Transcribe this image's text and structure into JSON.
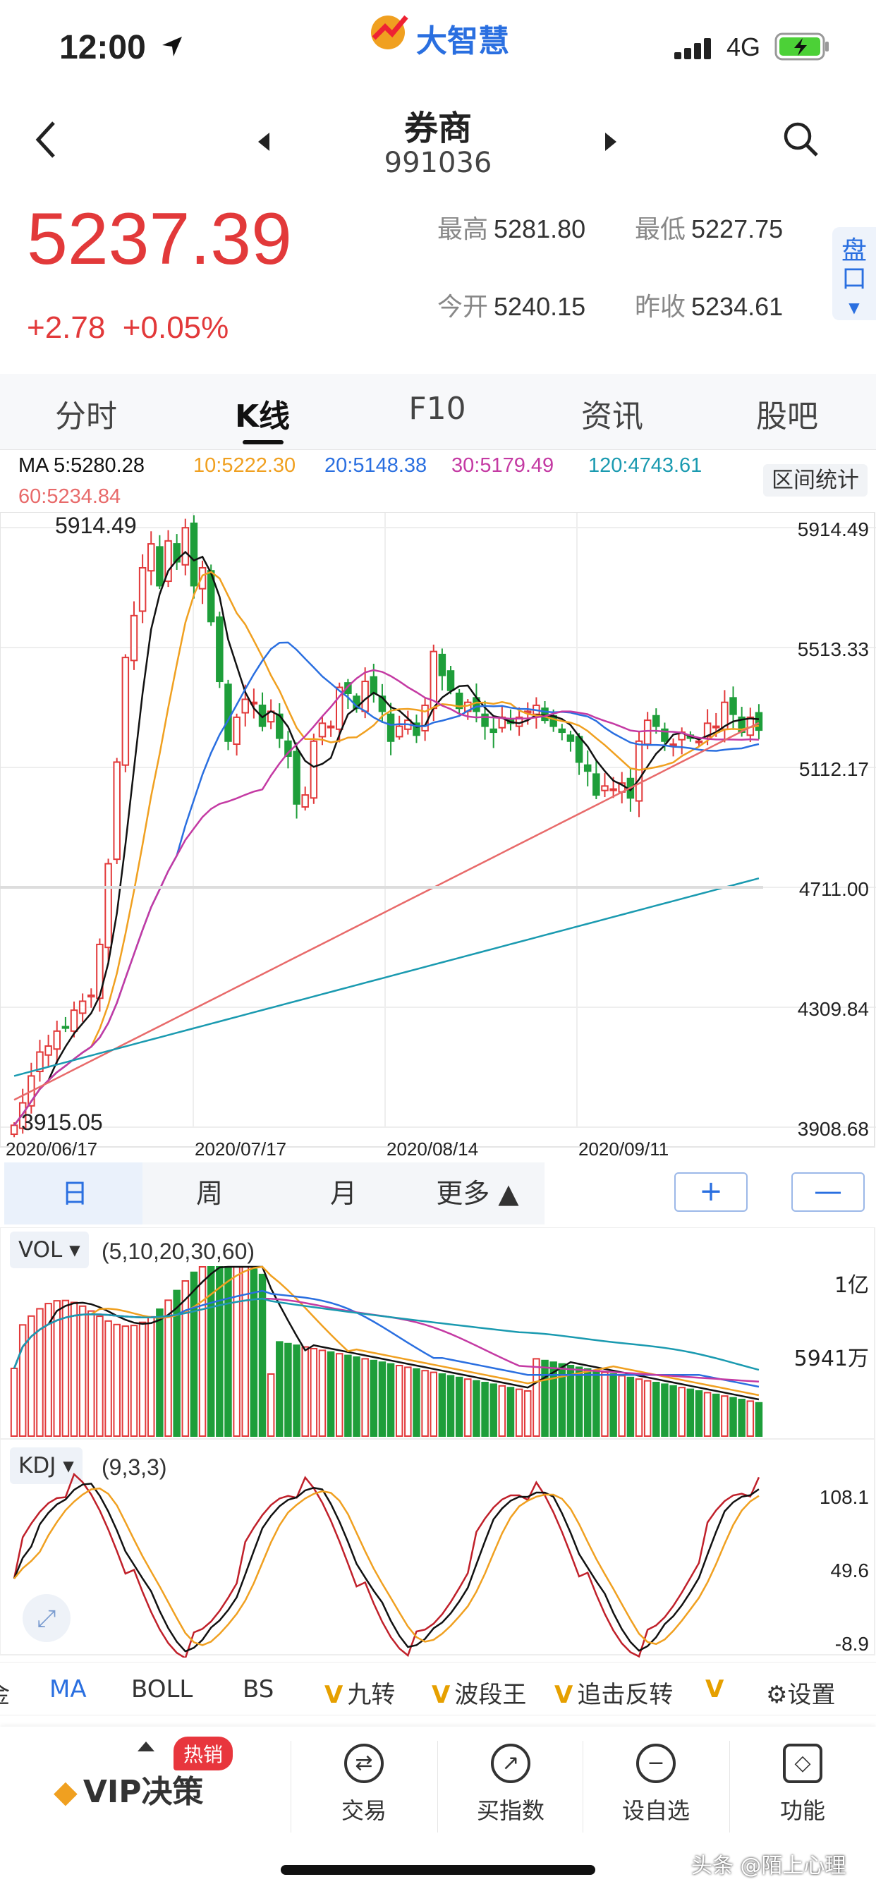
{
  "status_bar": {
    "time": "12:00",
    "app": "大智慧",
    "network": "4G"
  },
  "header": {
    "title": "券商",
    "code": "991036",
    "price": "5237.39",
    "change": "+2.78",
    "change_pct": "+0.05%",
    "high_label": "最高",
    "high": "5281.80",
    "low_label": "最低",
    "low": "5227.75",
    "open_label": "今开",
    "open": "5240.15",
    "prev_label": "昨收",
    "prev_close": "5234.61",
    "pankou_label": "盘口"
  },
  "tabs": [
    "分时",
    "K线",
    "F10",
    "资讯",
    "股吧"
  ],
  "ma_legend": {
    "ma5": "MA 5:5280.28",
    "ma10": "10:5222.30",
    "ma20": "20:5148.38",
    "ma30": "30:5179.49",
    "ma120": "120:4743.61",
    "ma60": "60:5234.84",
    "stats_button": "区间统计"
  },
  "chart_labels": {
    "y_ticks": [
      "5914.49",
      "5513.33",
      "5112.17",
      "4711.00",
      "4309.84",
      "3908.68"
    ],
    "x_ticks": [
      "2020/06/17",
      "2020/07/17",
      "2020/08/14",
      "2020/09/11"
    ],
    "max_label": "5914.49",
    "min_label": "3915.05"
  },
  "period": {
    "day": "日",
    "week": "周",
    "month": "月",
    "more": "更多 ▲",
    "plus": "+",
    "minus": "—"
  },
  "vol": {
    "name": "VOL ▾",
    "params": "(5,10,20,30,60)",
    "tick_high": "1亿",
    "tick_mid": "5941万"
  },
  "kdj": {
    "name": "KDJ ▾",
    "params": "(9,3,3)",
    "ticks": [
      "108.1",
      "49.6",
      "-8.9"
    ]
  },
  "indicators": [
    "金",
    "MA",
    "BOLL",
    "BS",
    "九转",
    "波段王",
    "追击反转",
    "设置"
  ],
  "bottom_nav": {
    "vip": "VIP决策",
    "hot": "热销",
    "trade": "交易",
    "index": "买指数",
    "watch": "设自选",
    "func": "功能"
  },
  "watermark": "头条 @陌上心理",
  "colors": {
    "red": "#e2393a",
    "green": "#1e9e3a",
    "ma5": "#111111",
    "ma10": "#f0a020",
    "ma20": "#2a6fe0",
    "ma30": "#c43aa3",
    "ma60": "#e86a6a",
    "ma120": "#1a9ab0"
  },
  "chart_data": {
    "type": "candlestick",
    "x_labels": [
      "2020/06/17",
      "2020/07/17",
      "2020/08/14",
      "2020/09/11"
    ],
    "ylim": [
      3908.68,
      5914.49
    ],
    "closes": [
      3915,
      3990,
      4080,
      4160,
      4180,
      4230,
      4240,
      4300,
      4330,
      4350,
      4520,
      4790,
      5130,
      5480,
      5620,
      5780,
      5860,
      5720,
      5870,
      5800,
      5914,
      5720,
      5780,
      5600,
      5400,
      5200,
      5280,
      5340,
      5330,
      5250,
      5300,
      5210,
      5150,
      4990,
      5020,
      5200,
      5260,
      5250,
      5380,
      5360,
      5310,
      5400,
      5360,
      5300,
      5200,
      5250,
      5270,
      5220,
      5320,
      5500,
      5420,
      5370,
      5310,
      5330,
      5300,
      5250,
      5230,
      5280,
      5260,
      5280,
      5300,
      5320,
      5270,
      5250,
      5230,
      5200,
      5130,
      5100,
      5020,
      5050,
      5040,
      5060,
      5010,
      5200,
      5270,
      5250,
      5200,
      5190,
      5230,
      5210,
      5200,
      5260,
      5250,
      5330,
      5290,
      5230,
      5280,
      5237
    ]
  }
}
